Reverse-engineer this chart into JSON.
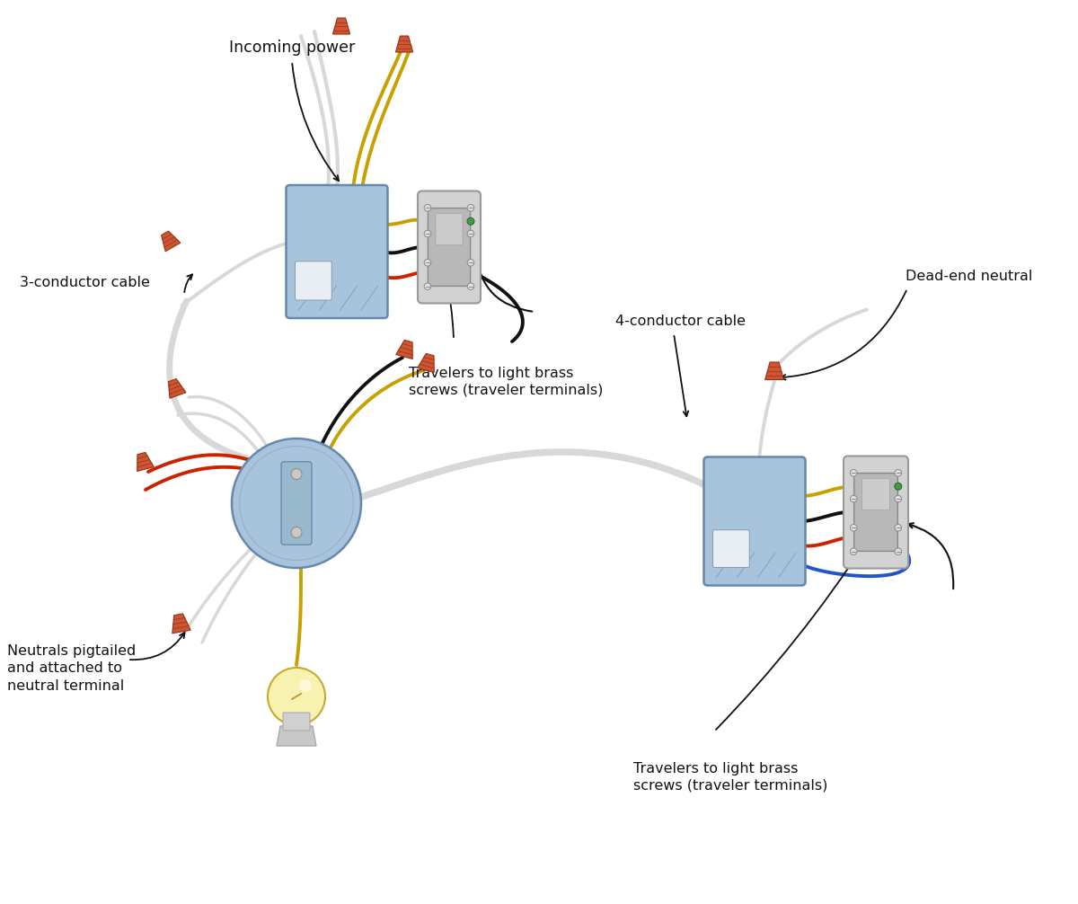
{
  "background": "#ffffff",
  "wire_black": "#111111",
  "wire_white": "#d8d8d8",
  "wire_red": "#cc2200",
  "wire_yellow": "#c8a000",
  "wire_blue": "#2255cc",
  "box_fill": "#a8c4dc",
  "box_edge": "#6688aa",
  "switch_outer": "#c8c8c8",
  "switch_inner": "#b0b0b0",
  "switch_plate": "#d8d8d8",
  "nut_fill": "#cc5533",
  "nut_edge": "#993311",
  "bulb_fill": "#f8f2b0",
  "bulb_edge": "#c8a830",
  "bulb_base": "#c0c0c0",
  "text_color": "#111111",
  "arrow_color": "#111111",
  "ann_incoming": "Incoming power",
  "ann_3cond": "3-conductor cable",
  "ann_travelers_top": "Travelers to light brass\nscrews (traveler terminals)",
  "ann_4cond": "4-conductor cable",
  "ann_deadend": "Dead-end neutral",
  "ann_neutrals": "Neutrals pigtailed\nand attached to\nneutral terminal",
  "ann_travelers_bot": "Travelers to light brass\nscrews (traveler terminals)"
}
